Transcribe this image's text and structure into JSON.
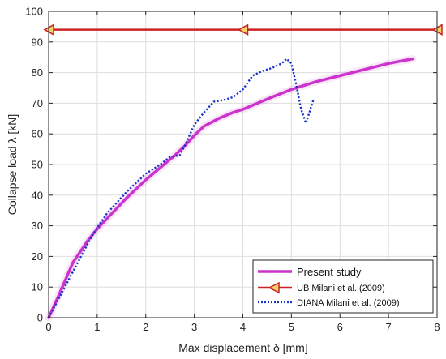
{
  "chart_data": {
    "type": "line",
    "xlabel": "Max displacement δ [mm]",
    "ylabel": "Collapse load λ [kN]",
    "xlim": [
      0,
      8
    ],
    "ylim": [
      0,
      100
    ],
    "x_ticks": [
      0,
      1,
      2,
      3,
      4,
      5,
      6,
      7,
      8
    ],
    "y_ticks": [
      0,
      10,
      20,
      30,
      40,
      50,
      60,
      70,
      80,
      90,
      100
    ],
    "x_tick_labels": [
      "0",
      "1",
      "2",
      "3",
      "4",
      "5",
      "6",
      "7",
      "8"
    ],
    "y_tick_labels": [
      "0",
      "10",
      "20",
      "30",
      "40",
      "50",
      "60",
      "70",
      "80",
      "90",
      "100"
    ],
    "grid": true,
    "legend_position": "bottom-right",
    "series": [
      {
        "name": "Present study",
        "color": "#cc33cc",
        "style": "solid-thick",
        "x": [
          0,
          0.2,
          0.5,
          0.8,
          1.0,
          1.3,
          1.6,
          2.0,
          2.3,
          2.6,
          2.8,
          3.0,
          3.2,
          3.5,
          3.8,
          4.0,
          4.3,
          4.6,
          5.0,
          5.5,
          6.0,
          6.5,
          7.0,
          7.5
        ],
        "y": [
          0,
          7,
          18,
          25,
          29,
          34,
          39,
          45,
          49,
          53,
          56,
          59.5,
          62.5,
          65,
          67,
          68,
          70,
          72,
          74.5,
          77,
          79,
          81,
          83,
          84.5
        ]
      },
      {
        "name": "UB Milani et al. (2009)",
        "color": "#cc2222",
        "style": "solid-triangle-markers",
        "x": [
          0,
          4,
          8
        ],
        "y": [
          94,
          94,
          94
        ]
      },
      {
        "name": "DIANA Milani et al. (2009)",
        "color": "#1a33cc",
        "style": "dotted",
        "x": [
          0,
          0.3,
          0.6,
          0.9,
          1.2,
          1.6,
          2.0,
          2.3,
          2.5,
          2.7,
          2.8,
          3.0,
          3.2,
          3.4,
          3.6,
          3.8,
          4.0,
          4.2,
          4.4,
          4.6,
          4.8,
          4.9,
          5.0,
          5.1,
          5.2,
          5.3,
          5.35,
          5.45
        ],
        "y": [
          0,
          9,
          18,
          27,
          34,
          41,
          47,
          50,
          52.5,
          53,
          56,
          63,
          67,
          70.5,
          71,
          72,
          74.5,
          79,
          80.5,
          81.5,
          83,
          84.5,
          83,
          76,
          68,
          63.5,
          66,
          71
        ]
      }
    ]
  }
}
